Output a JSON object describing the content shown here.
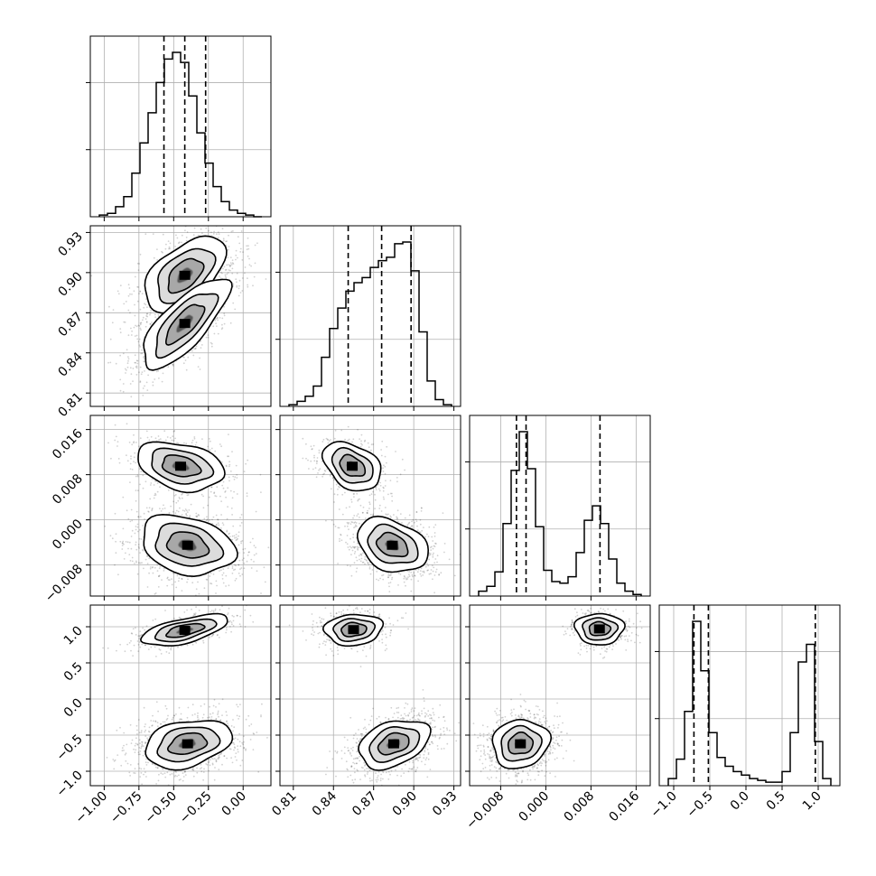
{
  "chart_data": {
    "type": "corner",
    "grid": true,
    "parameters": [
      {
        "range": [
          -1.1,
          0.2
        ],
        "ticks": [
          -1.0,
          -0.75,
          -0.5,
          -0.25,
          0.0
        ],
        "tick_labels": [
          "−1.00",
          "−0.75",
          "−0.50",
          "−0.25",
          "0.00"
        ]
      },
      {
        "range": [
          0.8,
          0.935
        ],
        "ticks": [
          0.81,
          0.84,
          0.87,
          0.9,
          0.93
        ],
        "tick_labels": [
          "0.81",
          "0.84",
          "0.87",
          "0.90",
          "0.93"
        ]
      },
      {
        "range": [
          -0.0135,
          0.0185
        ],
        "ticks": [
          -0.008,
          0.0,
          0.008,
          0.016
        ],
        "tick_labels": [
          "−0.008",
          "0.000",
          "0.008",
          "0.016"
        ]
      },
      {
        "range": [
          -1.2,
          1.3
        ],
        "ticks": [
          -1.0,
          -0.5,
          0.0,
          0.5,
          1.0
        ],
        "tick_labels": [
          "−1.0",
          "−0.5",
          "0.0",
          "0.5",
          "1.0"
        ]
      }
    ],
    "marginals": [
      {
        "param": 0,
        "bins": 20,
        "counts": [
          1,
          2,
          6,
          12,
          26,
          44,
          62,
          80,
          94,
          98,
          92,
          72,
          50,
          32,
          18,
          9,
          4,
          2,
          1,
          0
        ],
        "quantiles": [
          -0.57,
          -0.42,
          -0.27
        ]
      },
      {
        "param": 1,
        "bins": 20,
        "counts": [
          1,
          3,
          6,
          12,
          29,
          46,
          58,
          68,
          73,
          76,
          82,
          86,
          88,
          96,
          97,
          80,
          44,
          15,
          4,
          1
        ],
        "quantiles": [
          0.851,
          0.876,
          0.898
        ]
      },
      {
        "param": 2,
        "bins": 20,
        "counts": [
          3,
          6,
          15,
          45,
          78,
          102,
          79,
          43,
          16,
          9,
          8,
          12,
          27,
          47,
          56,
          45,
          23,
          8,
          3,
          1
        ],
        "quantiles": [
          -0.0052,
          -0.0035,
          0.0096
        ]
      },
      {
        "param": 3,
        "bins": 20,
        "counts": [
          4,
          15,
          42,
          93,
          65,
          30,
          16,
          11,
          8,
          6,
          4,
          3,
          2,
          2,
          8,
          30,
          70,
          80,
          25,
          4
        ],
        "quantiles": [
          -0.72,
          -0.52,
          0.96
        ]
      }
    ],
    "joint": [
      {
        "x_param": 0,
        "y_param": 1,
        "modes": [
          {
            "cx": -0.42,
            "cy": 0.898,
            "sx": 0.12,
            "sy": 0.012,
            "rho": 0.5,
            "w": 0.55
          },
          {
            "cx": -0.42,
            "cy": 0.862,
            "sx": 0.13,
            "sy": 0.014,
            "rho": 0.75,
            "w": 0.45
          }
        ]
      },
      {
        "x_param": 0,
        "y_param": 2,
        "modes": [
          {
            "cx": -0.45,
            "cy": 0.0095,
            "sx": 0.13,
            "sy": 0.0018,
            "rho": -0.3,
            "w": 0.35
          },
          {
            "cx": -0.4,
            "cy": -0.0045,
            "sx": 0.14,
            "sy": 0.0022,
            "rho": -0.25,
            "w": 0.65
          }
        ]
      },
      {
        "x_param": 0,
        "y_param": 3,
        "modes": [
          {
            "cx": -0.42,
            "cy": 0.95,
            "sx": 0.13,
            "sy": 0.09,
            "rho": 0.6,
            "w": 0.3
          },
          {
            "cx": -0.4,
            "cy": -0.62,
            "sx": 0.13,
            "sy": 0.14,
            "rho": 0.3,
            "w": 0.7
          }
        ]
      },
      {
        "x_param": 1,
        "y_param": 2,
        "modes": [
          {
            "cx": 0.854,
            "cy": 0.0095,
            "sx": 0.009,
            "sy": 0.0018,
            "rho": -0.35,
            "w": 0.35
          },
          {
            "cx": 0.884,
            "cy": -0.0045,
            "sx": 0.011,
            "sy": 0.002,
            "rho": -0.3,
            "w": 0.65
          }
        ]
      },
      {
        "x_param": 1,
        "y_param": 3,
        "modes": [
          {
            "cx": 0.855,
            "cy": 0.96,
            "sx": 0.009,
            "sy": 0.09,
            "rho": 0.1,
            "w": 0.3
          },
          {
            "cx": 0.885,
            "cy": -0.62,
            "sx": 0.011,
            "sy": 0.14,
            "rho": 0.35,
            "w": 0.7
          }
        ]
      },
      {
        "x_param": 2,
        "y_param": 3,
        "modes": [
          {
            "cx": 0.0095,
            "cy": 0.97,
            "sx": 0.0018,
            "sy": 0.09,
            "rho": 0.0,
            "w": 0.3
          },
          {
            "cx": -0.0045,
            "cy": -0.62,
            "sx": 0.0021,
            "sy": 0.14,
            "rho": 0.1,
            "w": 0.7
          }
        ]
      }
    ]
  }
}
